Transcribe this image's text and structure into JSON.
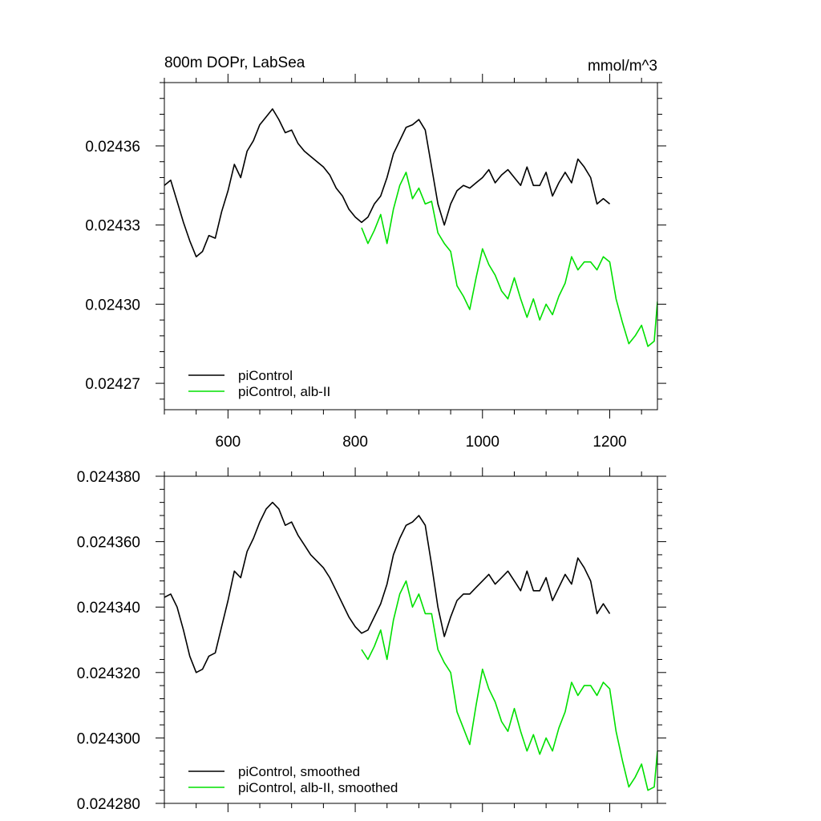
{
  "chart_data": [
    {
      "type": "line",
      "title": "800m DOPr, LabSea",
      "units": "mmol/m^3",
      "xlim": [
        500,
        1275
      ],
      "ylim": [
        0.02426,
        0.024384
      ],
      "x_ticks": [
        600,
        800,
        1000,
        1200
      ],
      "x_tick_labels": [
        "600",
        "800",
        "1000",
        "1200"
      ],
      "y_ticks": [
        0.02427,
        0.0243,
        0.02433,
        0.02436
      ],
      "y_tick_labels": [
        "0.02427",
        "0.02430",
        "0.02433",
        "0.02436"
      ],
      "legend_position": "bottom-left",
      "series": [
        {
          "name": "piControl",
          "color": "#000000",
          "x": [
            500,
            510,
            520,
            530,
            540,
            550,
            560,
            570,
            580,
            590,
            600,
            610,
            620,
            630,
            640,
            650,
            660,
            670,
            680,
            690,
            700,
            710,
            720,
            730,
            740,
            750,
            760,
            770,
            780,
            790,
            800,
            810,
            820,
            830,
            840,
            850,
            860,
            870,
            880,
            890,
            900,
            910,
            920,
            930,
            940,
            950,
            960,
            970,
            980,
            990,
            1000,
            1010,
            1020,
            1030,
            1040,
            1050,
            1060,
            1070,
            1080,
            1090,
            1100,
            1110,
            1120,
            1130,
            1140,
            1150,
            1160,
            1170,
            1180,
            1190,
            1200
          ],
          "y": [
            0.024345,
            0.024347,
            0.024339,
            0.024331,
            0.024324,
            0.024318,
            0.02432,
            0.024326,
            0.024325,
            0.024335,
            0.024343,
            0.024353,
            0.024348,
            0.024358,
            0.024362,
            0.024368,
            0.024371,
            0.024374,
            0.02437,
            0.024365,
            0.024366,
            0.024361,
            0.024358,
            0.024356,
            0.024354,
            0.024352,
            0.024349,
            0.024344,
            0.024341,
            0.024336,
            0.024333,
            0.024331,
            0.024333,
            0.024338,
            0.024341,
            0.024348,
            0.024357,
            0.024362,
            0.024367,
            0.024368,
            0.02437,
            0.024366,
            0.024352,
            0.024338,
            0.02433,
            0.024338,
            0.024343,
            0.024345,
            0.024344,
            0.024346,
            0.024348,
            0.024351,
            0.024346,
            0.024349,
            0.024351,
            0.024348,
            0.024345,
            0.024352,
            0.024345,
            0.024345,
            0.02435,
            0.024341,
            0.024346,
            0.02435,
            0.024346,
            0.024355,
            0.024352,
            0.024348,
            0.024338,
            0.02434,
            0.024338
          ]
        },
        {
          "name": "piControl, alb-II",
          "color": "#00e000",
          "x": [
            810,
            820,
            830,
            840,
            850,
            860,
            870,
            880,
            890,
            900,
            910,
            920,
            930,
            940,
            950,
            960,
            970,
            980,
            990,
            1000,
            1010,
            1020,
            1030,
            1040,
            1050,
            1060,
            1070,
            1080,
            1090,
            1100,
            1110,
            1120,
            1130,
            1140,
            1150,
            1160,
            1170,
            1180,
            1190,
            1200,
            1210,
            1220,
            1230,
            1240,
            1250,
            1260,
            1270,
            1275
          ],
          "y": [
            0.024329,
            0.024323,
            0.024328,
            0.024334,
            0.024323,
            0.024336,
            0.024345,
            0.02435,
            0.02434,
            0.024344,
            0.024338,
            0.024339,
            0.024327,
            0.024323,
            0.02432,
            0.024307,
            0.024303,
            0.024298,
            0.02431,
            0.024321,
            0.024315,
            0.024311,
            0.024305,
            0.024302,
            0.02431,
            0.024302,
            0.024295,
            0.024302,
            0.024294,
            0.0243,
            0.024296,
            0.024303,
            0.024308,
            0.024318,
            0.024313,
            0.024316,
            0.024316,
            0.024313,
            0.024318,
            0.024316,
            0.024302,
            0.024293,
            0.024285,
            0.024288,
            0.024292,
            0.024284,
            0.024286,
            0.024301
          ]
        }
      ]
    },
    {
      "type": "line",
      "xlim": [
        500,
        1275
      ],
      "ylim": [
        0.02428,
        0.02438
      ],
      "x_ticks": [
        600,
        800,
        1000,
        1200
      ],
      "y_ticks": [
        0.02428,
        0.0243,
        0.02432,
        0.02434,
        0.02436,
        0.02438
      ],
      "y_tick_labels": [
        "0.024280",
        "0.024300",
        "0.024320",
        "0.024340",
        "0.024360",
        "0.024380"
      ],
      "legend_position": "bottom-left",
      "series": [
        {
          "name": "piControl, smoothed",
          "color": "#000000",
          "x": [
            500,
            510,
            520,
            530,
            540,
            550,
            560,
            570,
            580,
            590,
            600,
            610,
            620,
            630,
            640,
            650,
            660,
            670,
            680,
            690,
            700,
            710,
            720,
            730,
            740,
            750,
            760,
            770,
            780,
            790,
            800,
            810,
            820,
            830,
            840,
            850,
            860,
            870,
            880,
            890,
            900,
            910,
            920,
            930,
            940,
            950,
            960,
            970,
            980,
            990,
            1000,
            1010,
            1020,
            1030,
            1040,
            1050,
            1060,
            1070,
            1080,
            1090,
            1100,
            1110,
            1120,
            1130,
            1140,
            1150,
            1160,
            1170,
            1180,
            1190,
            1200
          ],
          "y": [
            0.024343,
            0.024344,
            0.02434,
            0.024333,
            0.024325,
            0.02432,
            0.024321,
            0.024325,
            0.024326,
            0.024334,
            0.024342,
            0.024351,
            0.024349,
            0.024357,
            0.024361,
            0.024366,
            0.02437,
            0.024372,
            0.02437,
            0.024365,
            0.024366,
            0.024362,
            0.024359,
            0.024356,
            0.024354,
            0.024352,
            0.024349,
            0.024345,
            0.024341,
            0.024337,
            0.024334,
            0.024332,
            0.024333,
            0.024337,
            0.024341,
            0.024347,
            0.024356,
            0.024361,
            0.024365,
            0.024366,
            0.024368,
            0.024365,
            0.024353,
            0.02434,
            0.024331,
            0.024337,
            0.024342,
            0.024344,
            0.024344,
            0.024346,
            0.024348,
            0.02435,
            0.024347,
            0.024349,
            0.024351,
            0.024348,
            0.024345,
            0.024351,
            0.024345,
            0.024345,
            0.024349,
            0.024342,
            0.024346,
            0.02435,
            0.024347,
            0.024355,
            0.024352,
            0.024348,
            0.024338,
            0.024341,
            0.024338
          ]
        },
        {
          "name": "piControl, alb-II, smoothed",
          "color": "#00e000",
          "x": [
            810,
            820,
            830,
            840,
            850,
            860,
            870,
            880,
            890,
            900,
            910,
            920,
            930,
            940,
            950,
            960,
            970,
            980,
            990,
            1000,
            1010,
            1020,
            1030,
            1040,
            1050,
            1060,
            1070,
            1080,
            1090,
            1100,
            1110,
            1120,
            1130,
            1140,
            1150,
            1160,
            1170,
            1180,
            1190,
            1200,
            1210,
            1220,
            1230,
            1240,
            1250,
            1260,
            1270,
            1275
          ],
          "y": [
            0.024327,
            0.024324,
            0.024328,
            0.024333,
            0.024324,
            0.024336,
            0.024344,
            0.024348,
            0.02434,
            0.024344,
            0.024338,
            0.024338,
            0.024327,
            0.024323,
            0.02432,
            0.024308,
            0.024303,
            0.024298,
            0.02431,
            0.024321,
            0.024315,
            0.024311,
            0.024305,
            0.024302,
            0.024309,
            0.024302,
            0.024296,
            0.024301,
            0.024295,
            0.0243,
            0.024296,
            0.024303,
            0.024308,
            0.024317,
            0.024313,
            0.024316,
            0.024316,
            0.024313,
            0.024317,
            0.024315,
            0.024302,
            0.024293,
            0.024285,
            0.024288,
            0.024292,
            0.024284,
            0.024285,
            0.024296
          ]
        }
      ]
    }
  ]
}
